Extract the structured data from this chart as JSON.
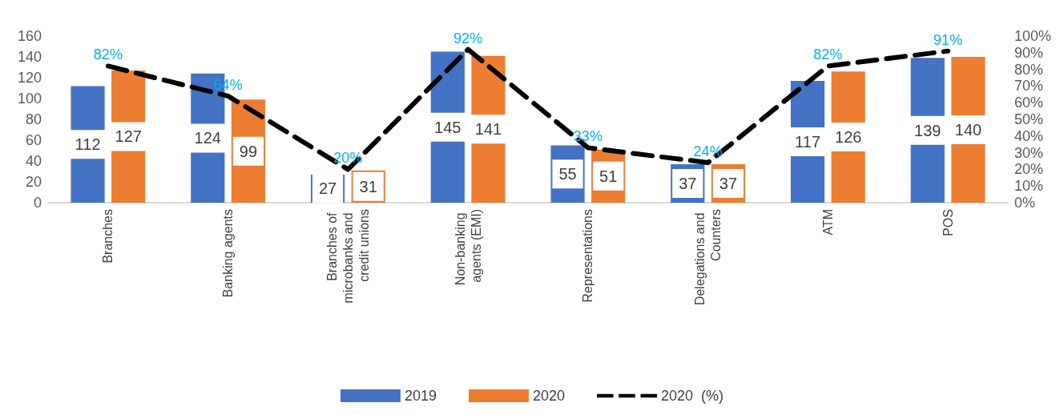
{
  "chart_data": {
    "type": "bar",
    "categories": [
      "Branches",
      "Banking agents",
      "Branches of microbanks and credit unions",
      "Non-banking agents (EMI)",
      "Representations",
      "Delegations and Counters",
      "ATM",
      "POS"
    ],
    "series": [
      {
        "name": "2019",
        "color": "#4472c4",
        "values": [
          112,
          124,
          27,
          145,
          55,
          37,
          117,
          139
        ]
      },
      {
        "name": "2020",
        "color": "#ed7d31",
        "values": [
          127,
          99,
          31,
          141,
          51,
          37,
          126,
          140
        ]
      },
      {
        "name": "2020  (%)",
        "type": "line",
        "axis": "y2",
        "color": "#000000",
        "line_style": "dashed",
        "marker": "none",
        "values": [
          82,
          64,
          20,
          92,
          33,
          24,
          82,
          91
        ],
        "value_labels": [
          "82%",
          "64%",
          "20%",
          "92%",
          "33%",
          "24%",
          "82%",
          "91%"
        ]
      }
    ],
    "data_labels": true,
    "ylim": [
      0,
      160
    ],
    "yticks": [
      0,
      20,
      40,
      60,
      80,
      100,
      120,
      140,
      160
    ],
    "y2lim": [
      0,
      100
    ],
    "y2ticks": [
      {
        "value": 0,
        "label": "0%"
      },
      {
        "value": 10,
        "label": "10%"
      },
      {
        "value": 20,
        "label": "20%"
      },
      {
        "value": 30,
        "label": "30%"
      },
      {
        "value": 40,
        "label": "40%"
      },
      {
        "value": 50,
        "label": "50%"
      },
      {
        "value": 60,
        "label": "60%"
      },
      {
        "value": 70,
        "label": "70%"
      },
      {
        "value": 80,
        "label": "80%"
      },
      {
        "value": 90,
        "label": "90%"
      },
      {
        "value": 100,
        "label": "100%"
      }
    ],
    "legend": "bottom"
  }
}
